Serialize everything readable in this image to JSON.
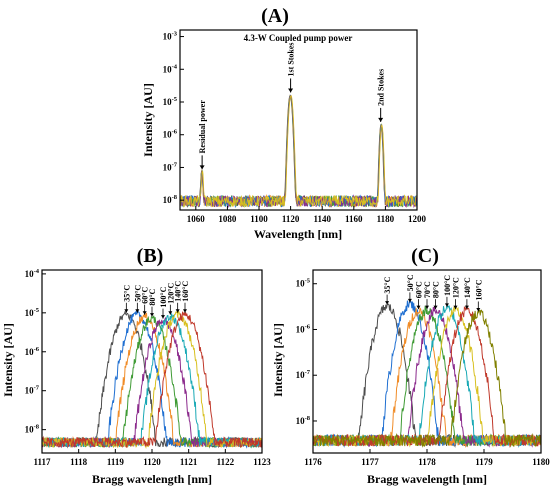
{
  "colors": {
    "palette": [
      "#4d4d4d",
      "#1f6fd1",
      "#f08c28",
      "#3f9b35",
      "#8b2a8c",
      "#19a9b5",
      "#d8c020",
      "#c0392b",
      "#808000",
      "#8b4513"
    ],
    "palette_a": [
      "#4d4d4d",
      "#f08c28",
      "#3f9b35",
      "#1f6fd1",
      "#8b2a8c",
      "#d8c020"
    ]
  },
  "chart_data": [
    {
      "id": "A",
      "type": "line",
      "panel_label": "(A)",
      "title": "4.3-W Coupled pump power",
      "xlabel": "Wavelength [nm]",
      "ylabel": "Intensity [AU]",
      "xlim": [
        1050,
        1200
      ],
      "ylim_log10": [
        -8.3,
        -2.8
      ],
      "log_y": true,
      "x_ticks": [
        "1060",
        "1080",
        "1100",
        "1120",
        "1140",
        "1160",
        "1180",
        "1200"
      ],
      "y_ticks": [
        "10^-8",
        "10^-7",
        "10^-6",
        "10^-5",
        "10^-4",
        "10^-3"
      ],
      "annotations": [
        {
          "text": "Residual power",
          "x": 1064
        },
        {
          "text": "1st Stokes",
          "x": 1120
        },
        {
          "text": "2nd Stokes",
          "x": 1177
        }
      ],
      "peaks": [
        {
          "x": 1064,
          "log_peak": -7.15,
          "width_nm": 0.6
        },
        {
          "x": 1120,
          "log_peak": -4.8,
          "width_nm": 1.2
        },
        {
          "x": 1177.5,
          "log_peak": -5.7,
          "width_nm": 0.9
        }
      ],
      "noise_floor_log": -8.1,
      "series_count": 6,
      "grid": false
    },
    {
      "id": "B",
      "type": "line",
      "panel_label": "(B)",
      "xlabel": "Bragg wavelength [nm]",
      "ylabel": "Intensity [AU]",
      "xlim": [
        1117,
        1123
      ],
      "ylim_log10": [
        -8.6,
        -3.9
      ],
      "log_y": true,
      "x_ticks": [
        "1117",
        "1118",
        "1119",
        "1120",
        "1121",
        "1122",
        "1123"
      ],
      "y_ticks": [
        "10^-8",
        "10^-7",
        "10^-6",
        "10^-5",
        "10^-4"
      ],
      "series": [
        {
          "name": "35°C",
          "center": 1119.3,
          "log_peak": -5.05
        },
        {
          "name": "50°C",
          "center": 1119.6,
          "log_peak": -5.05
        },
        {
          "name": "60°C",
          "center": 1119.8,
          "log_peak": -5.1
        },
        {
          "name": "80°C",
          "center": 1120.0,
          "log_peak": -5.15
        },
        {
          "name": "100°C",
          "center": 1120.3,
          "log_peak": -5.2
        },
        {
          "name": "120°C",
          "center": 1120.5,
          "log_peak": -5.1
        },
        {
          "name": "140°C",
          "center": 1120.7,
          "log_peak": -5.05
        },
        {
          "name": "160°C",
          "center": 1120.9,
          "log_peak": -5.05
        }
      ],
      "half_width_nm": 0.85,
      "grid": false
    },
    {
      "id": "C",
      "type": "line",
      "panel_label": "(C)",
      "xlabel": "Bragg wavelength [nm]",
      "ylabel": "Intensity [AU]",
      "xlim": [
        1176,
        1180
      ],
      "ylim_log10": [
        -8.7,
        -4.7
      ],
      "log_y": true,
      "x_ticks": [
        "1176",
        "1177",
        "1178",
        "1179",
        "1180"
      ],
      "y_ticks": [
        "10^-8",
        "10^-7",
        "10^-6",
        "10^-5"
      ],
      "series": [
        {
          "name": "35°C",
          "center": 1177.3,
          "log_peak": -5.5
        },
        {
          "name": "50°C",
          "center": 1177.7,
          "log_peak": -5.45
        },
        {
          "name": "60°C",
          "center": 1177.85,
          "log_peak": -5.6
        },
        {
          "name": "70°C",
          "center": 1178.0,
          "log_peak": -5.6
        },
        {
          "name": "80°C",
          "center": 1178.15,
          "log_peak": -5.6
        },
        {
          "name": "100°C",
          "center": 1178.35,
          "log_peak": -5.55
        },
        {
          "name": "120°C",
          "center": 1178.5,
          "log_peak": -5.6
        },
        {
          "name": "140°C",
          "center": 1178.7,
          "log_peak": -5.6
        },
        {
          "name": "160°C",
          "center": 1178.9,
          "log_peak": -5.65
        }
      ],
      "half_width_nm": 0.55,
      "grid": false
    }
  ]
}
